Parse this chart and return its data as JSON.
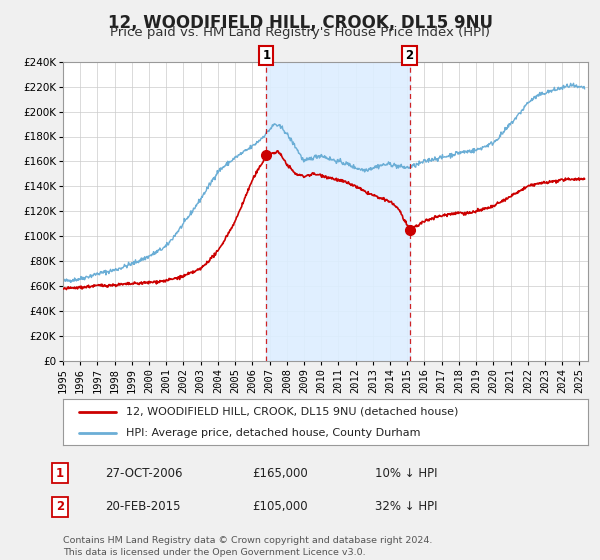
{
  "title": "12, WOODIFIELD HILL, CROOK, DL15 9NU",
  "subtitle": "Price paid vs. HM Land Registry's House Price Index (HPI)",
  "ylim": [
    0,
    240000
  ],
  "yticks": [
    0,
    20000,
    40000,
    60000,
    80000,
    100000,
    120000,
    140000,
    160000,
    180000,
    200000,
    220000,
    240000
  ],
  "xlim_start": 1995.0,
  "xlim_end": 2025.5,
  "sale1_x": 2006.82,
  "sale1_y": 165000,
  "sale2_x": 2015.13,
  "sale2_y": 105000,
  "legend_line1": "12, WOODIFIELD HILL, CROOK, DL15 9NU (detached house)",
  "legend_line2": "HPI: Average price, detached house, County Durham",
  "table_row1_num": "1",
  "table_row1_date": "27-OCT-2006",
  "table_row1_price": "£165,000",
  "table_row1_hpi": "10% ↓ HPI",
  "table_row2_num": "2",
  "table_row2_date": "20-FEB-2015",
  "table_row2_price": "£105,000",
  "table_row2_hpi": "32% ↓ HPI",
  "footer": "Contains HM Land Registry data © Crown copyright and database right 2024.\nThis data is licensed under the Open Government Licence v3.0.",
  "hpi_color": "#6baed6",
  "price_color": "#cc0000",
  "shade_color": "#ddeeff",
  "background_color": "#f0f0f0",
  "plot_bg_color": "#ffffff",
  "title_fontsize": 12,
  "subtitle_fontsize": 9.5,
  "tick_fontsize": 7.5
}
